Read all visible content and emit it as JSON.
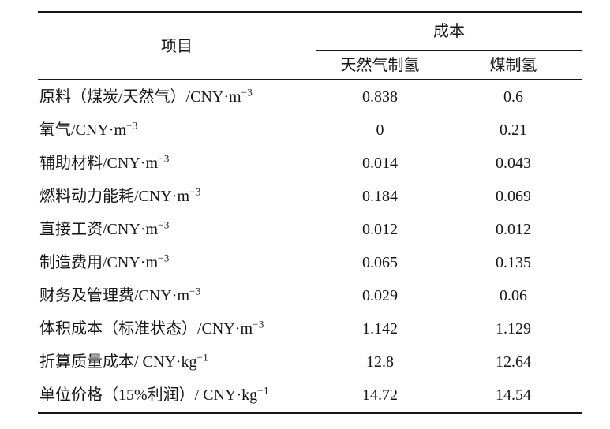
{
  "table": {
    "header": {
      "item": "项目",
      "cost": "成本",
      "sub": [
        "天然气制氢",
        "煤制氢"
      ]
    },
    "rows": [
      {
        "item": "原料（煤炭/天然气）/CNY·m",
        "sup": "−3",
        "gas": "0.838",
        "coal": "0.6"
      },
      {
        "item": "氧气/CNY·m",
        "sup": "−3",
        "gas": "0",
        "coal": "0.21"
      },
      {
        "item": "辅助材料/CNY·m",
        "sup": "−3",
        "gas": "0.014",
        "coal": "0.043"
      },
      {
        "item": "燃料动力能耗/CNY·m",
        "sup": "−3",
        "gas": "0.184",
        "coal": "0.069"
      },
      {
        "item": "直接工资/CNY·m",
        "sup": "−3",
        "gas": "0.012",
        "coal": "0.012"
      },
      {
        "item": "制造费用/CNY·m",
        "sup": "−3",
        "gas": "0.065",
        "coal": "0.135"
      },
      {
        "item": "财务及管理费/CNY·m",
        "sup": "−3",
        "gas": "0.029",
        "coal": "0.06"
      },
      {
        "item": "体积成本（标准状态）/CNY·m",
        "sup": "−3",
        "gas": "1.142",
        "coal": "1.129"
      },
      {
        "item": "折算质量成本/ CNY·kg",
        "sup": "−1",
        "gas": "12.8",
        "coal": "12.64"
      },
      {
        "item": "单位价格（15%利润）/ CNY·kg",
        "sup": "−1",
        "gas": "14.72",
        "coal": "14.54"
      }
    ],
    "colors": {
      "text": "#161616",
      "rule": "#161616",
      "background": "#ffffff"
    }
  }
}
